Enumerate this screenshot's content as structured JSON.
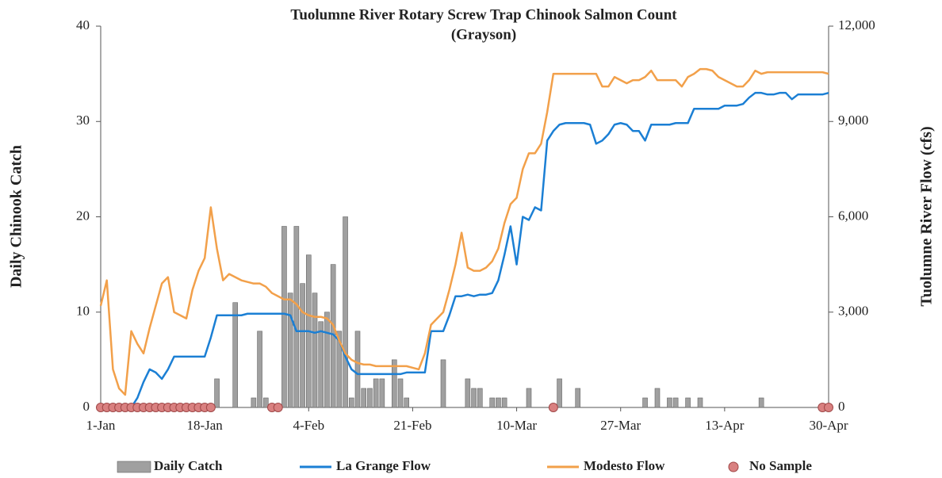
{
  "chart_data": {
    "type": "bar",
    "title": "Tuolumne River Rotary Screw Trap Chinook Salmon Count",
    "subtitle": "(Grayson)",
    "ylabel": "Daily Chinook Catch",
    "y2label": "Tuolumne River Flow (cfs)",
    "categories": [
      "1-Jan",
      null,
      null,
      null,
      null,
      null,
      null,
      null,
      null,
      null,
      null,
      null,
      null,
      null,
      null,
      null,
      null,
      "18-Jan",
      null,
      null,
      null,
      null,
      null,
      null,
      null,
      null,
      null,
      null,
      null,
      null,
      null,
      null,
      null,
      null,
      "4-Feb",
      null,
      null,
      null,
      null,
      null,
      null,
      null,
      null,
      null,
      null,
      null,
      null,
      null,
      null,
      null,
      null,
      "21-Feb",
      null,
      null,
      null,
      null,
      null,
      null,
      null,
      null,
      null,
      null,
      null,
      null,
      null,
      null,
      null,
      null,
      "10-Mar",
      null,
      null,
      null,
      null,
      null,
      null,
      null,
      null,
      null,
      null,
      null,
      null,
      null,
      null,
      null,
      null,
      "27-Mar",
      null,
      null,
      null,
      null,
      null,
      null,
      null,
      null,
      null,
      null,
      null,
      null,
      null,
      null,
      null,
      null,
      "13-Apr",
      null,
      null,
      null,
      null,
      null,
      null,
      null,
      null,
      null,
      null,
      null,
      null,
      null,
      null,
      null,
      null,
      "30-Apr"
    ],
    "ylim": [
      0,
      40
    ],
    "yticks": [
      0,
      10,
      20,
      30,
      40
    ],
    "y2lim": [
      0,
      12000
    ],
    "y2ticks": [
      0,
      {
        "value": 3000,
        "label": "3,000"
      },
      {
        "value": 6000,
        "label": "6,000"
      },
      {
        "value": 9000,
        "label": "9,000"
      },
      {
        "value": 12000,
        "label": "12,000"
      }
    ],
    "legend": "bottom",
    "series": [
      {
        "name": "Daily Catch",
        "type": "bar",
        "color": "#a0a0a0",
        "values": [
          null,
          null,
          null,
          null,
          null,
          null,
          null,
          null,
          null,
          null,
          null,
          null,
          null,
          null,
          null,
          null,
          null,
          null,
          null,
          3,
          0,
          0,
          11,
          0,
          0,
          1,
          8,
          1,
          null,
          null,
          19,
          12,
          19,
          13,
          16,
          12,
          9,
          10,
          15,
          8,
          20,
          1,
          8,
          2,
          2,
          3,
          3,
          0,
          5,
          3,
          1,
          0,
          0,
          0,
          0,
          0,
          5,
          0,
          0,
          0,
          3,
          2,
          2,
          0,
          1,
          1,
          1,
          0,
          0,
          0,
          2,
          0,
          0,
          0,
          null,
          3,
          0,
          0,
          2,
          0,
          0,
          0,
          0,
          0,
          0,
          0,
          0,
          0,
          0,
          1,
          0,
          2,
          0,
          1,
          1,
          0,
          1,
          0,
          1,
          0,
          0,
          0,
          0,
          0,
          0,
          0,
          0,
          0,
          1,
          0,
          0,
          0,
          0,
          0,
          0,
          0,
          0,
          0,
          null,
          null
        ]
      },
      {
        "name": "La Grange Flow",
        "type": "line",
        "axis": "y2",
        "color": "#1b7fd4",
        "values": [
          0,
          0,
          0,
          0,
          0,
          0,
          300,
          800,
          1200,
          1100,
          900,
          1200,
          1600,
          1600,
          1600,
          1600,
          1600,
          1600,
          2200,
          2900,
          2900,
          2900,
          2900,
          2900,
          2950,
          2950,
          2950,
          2950,
          2950,
          2950,
          2950,
          2900,
          2400,
          2400,
          2400,
          2350,
          2400,
          2350,
          2300,
          2100,
          1600,
          1200,
          1050,
          1050,
          1050,
          1050,
          1050,
          1050,
          1050,
          1050,
          1100,
          1100,
          1100,
          1100,
          2400,
          2400,
          2400,
          2900,
          3500,
          3500,
          3550,
          3500,
          3550,
          3550,
          3600,
          4000,
          4800,
          5700,
          4500,
          6000,
          5900,
          6300,
          6200,
          8400,
          8700,
          8900,
          8950,
          8950,
          8950,
          8950,
          8900,
          8300,
          8400,
          8600,
          8900,
          8950,
          8900,
          8700,
          8700,
          8400,
          8900,
          8900,
          8900,
          8900,
          8950,
          8950,
          8950,
          9400,
          9400,
          9400,
          9400,
          9400,
          9500,
          9500,
          9500,
          9550,
          9750,
          9900,
          9900,
          9850,
          9850,
          9900,
          9900,
          9700,
          9850,
          9850,
          9850,
          9850,
          9850,
          9900
        ]
      },
      {
        "name": "Modesto Flow",
        "type": "line",
        "axis": "y2",
        "color": "#f2a04a",
        "values": [
          3200,
          4000,
          1200,
          600,
          400,
          2400,
          2000,
          1700,
          2500,
          3200,
          3900,
          4100,
          3000,
          2900,
          2800,
          3700,
          4300,
          4700,
          6300,
          5000,
          4000,
          4200,
          4100,
          4000,
          3950,
          3900,
          3900,
          3800,
          3600,
          3500,
          3400,
          3400,
          3250,
          3000,
          2900,
          2850,
          2850,
          2800,
          2600,
          2100,
          1700,
          1500,
          1400,
          1350,
          1350,
          1300,
          1300,
          1300,
          1300,
          1300,
          1300,
          1250,
          1200,
          1700,
          2600,
          2800,
          3000,
          3700,
          4500,
          5500,
          4400,
          4300,
          4300,
          4400,
          4600,
          5000,
          5800,
          6400,
          6600,
          7500,
          8000,
          8000,
          8300,
          9300,
          10500,
          10500,
          10500,
          10500,
          10500,
          10500,
          10500,
          10500,
          10100,
          10100,
          10400,
          10300,
          10200,
          10300,
          10300,
          10400,
          10600,
          10300,
          10300,
          10300,
          10300,
          10100,
          10400,
          10500,
          10650,
          10650,
          10600,
          10400,
          10300,
          10200,
          10100,
          10100,
          10300,
          10600,
          10500,
          10550,
          10550,
          10550,
          10550,
          10550,
          10550,
          10550,
          10550,
          10550,
          10550,
          10500
        ]
      },
      {
        "name": "No Sample",
        "type": "scatter",
        "color": "#d98080",
        "values": [
          0,
          0,
          0,
          0,
          0,
          0,
          0,
          0,
          0,
          0,
          0,
          0,
          0,
          0,
          0,
          0,
          0,
          0,
          0,
          null,
          null,
          null,
          null,
          null,
          null,
          null,
          null,
          null,
          0,
          0,
          null,
          null,
          null,
          null,
          null,
          null,
          null,
          null,
          null,
          null,
          null,
          null,
          null,
          null,
          null,
          null,
          null,
          null,
          null,
          null,
          null,
          null,
          null,
          null,
          null,
          null,
          null,
          null,
          null,
          null,
          null,
          null,
          null,
          null,
          null,
          null,
          null,
          null,
          null,
          null,
          null,
          null,
          null,
          null,
          0,
          null,
          null,
          null,
          null,
          null,
          null,
          null,
          null,
          null,
          null,
          null,
          null,
          null,
          null,
          null,
          null,
          null,
          null,
          null,
          null,
          null,
          null,
          null,
          null,
          null,
          null,
          null,
          null,
          null,
          null,
          null,
          null,
          null,
          null,
          null,
          null,
          null,
          null,
          null,
          null,
          null,
          null,
          null,
          0,
          0
        ]
      }
    ]
  }
}
